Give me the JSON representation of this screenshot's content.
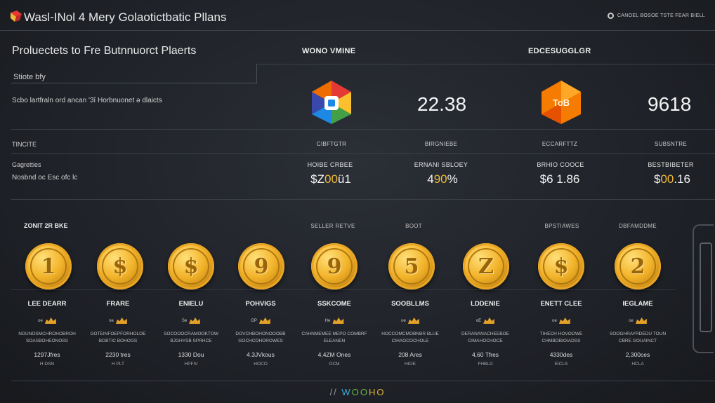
{
  "app": {
    "title": "Wasl-INol 4 Mery Golaotictbatic Pllans",
    "top_right": "CANOEL BOSOE TSTE FEAR BIELL"
  },
  "overview": {
    "title": "Proluectets to Fre Butnnuorct Plaerts",
    "status_label": "Stiote bfy",
    "description": "Scbo lartfraln ord ancan '3î Horbnuonet ǝ dlaicts"
  },
  "providers": [
    {
      "header": "WONO VMINE",
      "logo_colors": [
        "#e53935",
        "#1e88e5",
        "#43a047",
        "#fbc02d"
      ],
      "value": "22.38"
    },
    {
      "header": "EDCESUGGLGR",
      "logo_colors": [
        "#f57c00",
        "#ff9800",
        "#e65100"
      ],
      "logo_text": "ToB",
      "value": "9618"
    }
  ],
  "stats": {
    "row_label": "TINCITE",
    "row2_label": "Gagretties",
    "row3_label": "Nosbnd oc Esc ofc lc",
    "columns": [
      {
        "head": "CIBFTGTR",
        "sub": "HOIBE CRBEE",
        "val_pre": "$Z",
        "val_hl": "00",
        "val_post": "ü1"
      },
      {
        "head": "BIRGNIEBE",
        "sub": "ERNANI SBLOEY",
        "val_pre": "4",
        "val_hl": "90",
        "val_post": "%"
      },
      {
        "head": "ECCARFTTZ",
        "sub": "BRHIO COOCE",
        "val_pre": "$6 1.86",
        "val_hl": "",
        "val_post": ""
      },
      {
        "head": "SUBSNTRE",
        "sub": "BESTBIBETER",
        "val_pre": "$",
        "val_hl": "00",
        "val_post": ".16"
      }
    ]
  },
  "coins_section": {
    "title": "ZONIT 2R BKE",
    "headers": [
      {
        "label": "SELLER RETVE"
      },
      {
        "label": "BOOT"
      },
      {
        "label": "BPSTIAWES"
      },
      {
        "label": "DBFAMDDME"
      }
    ],
    "coins": [
      {
        "symbol": "1",
        "name": "LEE DEARR",
        "tag": "oe",
        "desc": "NOUNOSMCHROHOBROH SOASBOHEONOSS",
        "amount": "1297Jfres",
        "unit": "H DSN"
      },
      {
        "symbol": "$",
        "name": "FRARE",
        "tag": "oe",
        "desc": "GOTEINFOEPFORHOLOE BOBTIC BOHOGS",
        "amount": "2230 tres",
        "unit": "H PLT"
      },
      {
        "symbol": "$",
        "name": "ENIELU",
        "tag": "Se",
        "desc": "SOCOOOCRAMOOKTOW BJGHYSB SPRHCE",
        "amount": "1330 Dou",
        "unit": "HPFIV"
      },
      {
        "symbol": "9",
        "name": "POHVIGS",
        "tag": "GP",
        "desc": "DOVCHBOHONOOOBB GOCHCOHOROWES",
        "amount": "4.3JVkous",
        "unit": "HOCO"
      },
      {
        "symbol": "9",
        "name": "SSKCOME",
        "tag": "He",
        "desc": "CAHNMEMEE MEPO COMBRF ELEANEN",
        "amount": "4,4ZM Ones",
        "unit": "OCM"
      },
      {
        "symbol": "5",
        "name": "SOOBLLMS",
        "tag": "oe",
        "desc": "HOCCOMCMOBNBR BLUE CIHAOCOCHOLE",
        "amount": "208 Ares",
        "unit": "HIOE"
      },
      {
        "symbol": "Z",
        "name": "LDDENIE",
        "tag": "oE",
        "desc": "DERANANACHEEBOE CIMAHOCHOCE",
        "amount": "4,60 Tfres",
        "unit": "FHBLD"
      },
      {
        "symbol": "$",
        "name": "ENETT CLEE",
        "tag": "oe",
        "desc": "TIHECH HOVOOWE CHMBOBIOIADSS",
        "amount": "4330des",
        "unit": "EICLS"
      },
      {
        "symbol": "2",
        "name": "IEGLAME",
        "tag": "oe",
        "desc": "SOOGHRAYRDEDU TOUN CBRE GOUAINCT",
        "amount": "2,300ces",
        "unit": "HCLA"
      }
    ]
  },
  "footer": {
    "p1": "//",
    "p2": "W",
    "p3": "OO",
    "p4": "HO"
  }
}
